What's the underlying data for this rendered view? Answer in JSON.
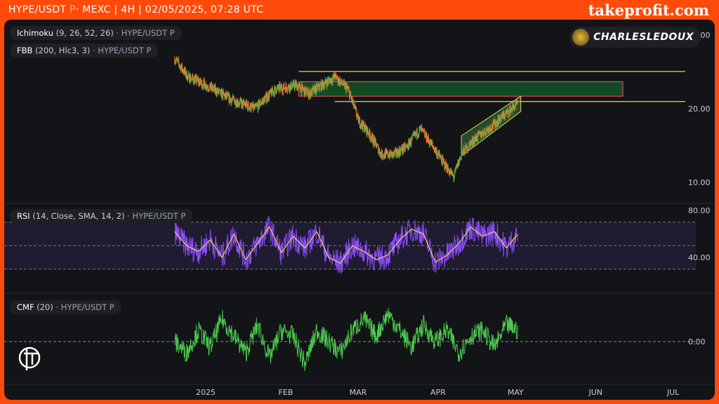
{
  "header": {
    "symbol": "HYPE/USDT",
    "perp": "P",
    "rest": "· MEXC | 4H | 02/05/2025, 07:28 UTC",
    "brand": "takeprofit.com"
  },
  "author": {
    "name": "CHARLESLEDOUX"
  },
  "legends": {
    "ichimoku": {
      "name": "Ichimoku",
      "params": "(9, 26, 52, 26)",
      "src": "· HYPE/USDT P"
    },
    "fbb": {
      "name": "FBB",
      "params": "(200, Hlc3, 3)",
      "src": "· HYPE/USDT P"
    },
    "rsi": {
      "name": "RSI",
      "params": "(14, Close, SMA, 14, 2)",
      "src": "· HYPE/USDT P"
    },
    "cmf": {
      "name": "CMF",
      "params": "(20)",
      "src": "· HYPE/USDT P"
    }
  },
  "colors": {
    "up": "#4caf50",
    "down": "#ff7a2a",
    "rsi": "#8b4dff",
    "rsi_ma": "#f5d142",
    "cmf": "#4cc94c",
    "level": "#e8d44d",
    "zone_fill": "#134a24",
    "zone_border": "#e04848"
  },
  "chart_data": [
    {
      "type": "candlestick",
      "scale": "log",
      "y_ticks": [
        "40.00",
        "20.00",
        "10.00"
      ],
      "y_tick_values": [
        40,
        20,
        10
      ],
      "x_ticks": [
        "2025",
        "FEB",
        "MAR",
        "APR",
        "MAY",
        "JUN",
        "JUL"
      ],
      "close_anchors": [
        [
          "2024-12-20",
          32
        ],
        [
          "2024-12-25",
          27
        ],
        [
          "2025-01-01",
          25
        ],
        [
          "2025-01-10",
          22
        ],
        [
          "2025-01-20",
          20
        ],
        [
          "2025-01-28",
          24
        ],
        [
          "2025-02-05",
          25
        ],
        [
          "2025-02-10",
          23
        ],
        [
          "2025-02-20",
          27
        ],
        [
          "2025-02-25",
          24
        ],
        [
          "2025-03-01",
          18
        ],
        [
          "2025-03-05",
          16
        ],
        [
          "2025-03-10",
          13
        ],
        [
          "2025-03-15",
          13
        ],
        [
          "2025-03-20",
          14
        ],
        [
          "2025-03-25",
          16.5
        ],
        [
          "2025-03-28",
          15
        ],
        [
          "2025-04-03",
          12
        ],
        [
          "2025-04-07",
          10.5
        ],
        [
          "2025-04-10",
          13
        ],
        [
          "2025-04-15",
          15
        ],
        [
          "2025-04-22",
          17
        ],
        [
          "2025-05-02",
          21
        ]
      ],
      "levels": [
        28.4,
        21.4
      ],
      "zone": [
        22.5,
        25.8
      ],
      "channel": {
        "from": "2025-04-10",
        "to": "2025-05-03"
      }
    },
    {
      "type": "line",
      "name": "RSI",
      "y_ticks": [
        "80.00",
        "40.00"
      ],
      "y_tick_values": [
        80,
        40
      ],
      "bands": [
        70,
        50,
        30
      ],
      "values": [
        62,
        50,
        45,
        55,
        40,
        60,
        38,
        52,
        66,
        44,
        58,
        48,
        62,
        40,
        35,
        50,
        45,
        38,
        42,
        55,
        64,
        60,
        36,
        42,
        52,
        66,
        58,
        62,
        48,
        60
      ]
    },
    {
      "type": "line",
      "name": "CMF",
      "y_ticks": [
        "0.00"
      ],
      "y_tick_values": [
        0
      ],
      "values": [
        0,
        -0.1,
        0.1,
        -0.05,
        0.2,
        0.05,
        -0.1,
        0.15,
        -0.15,
        0.1,
        0.05,
        -0.2,
        0.1,
        0,
        -0.1,
        0.1,
        0.2,
        0.05,
        0.25,
        0.1,
        -0.05,
        0.15,
        0,
        0.1,
        -0.1,
        0.05,
        0.1,
        -0.05,
        0.15,
        0.1
      ]
    }
  ]
}
